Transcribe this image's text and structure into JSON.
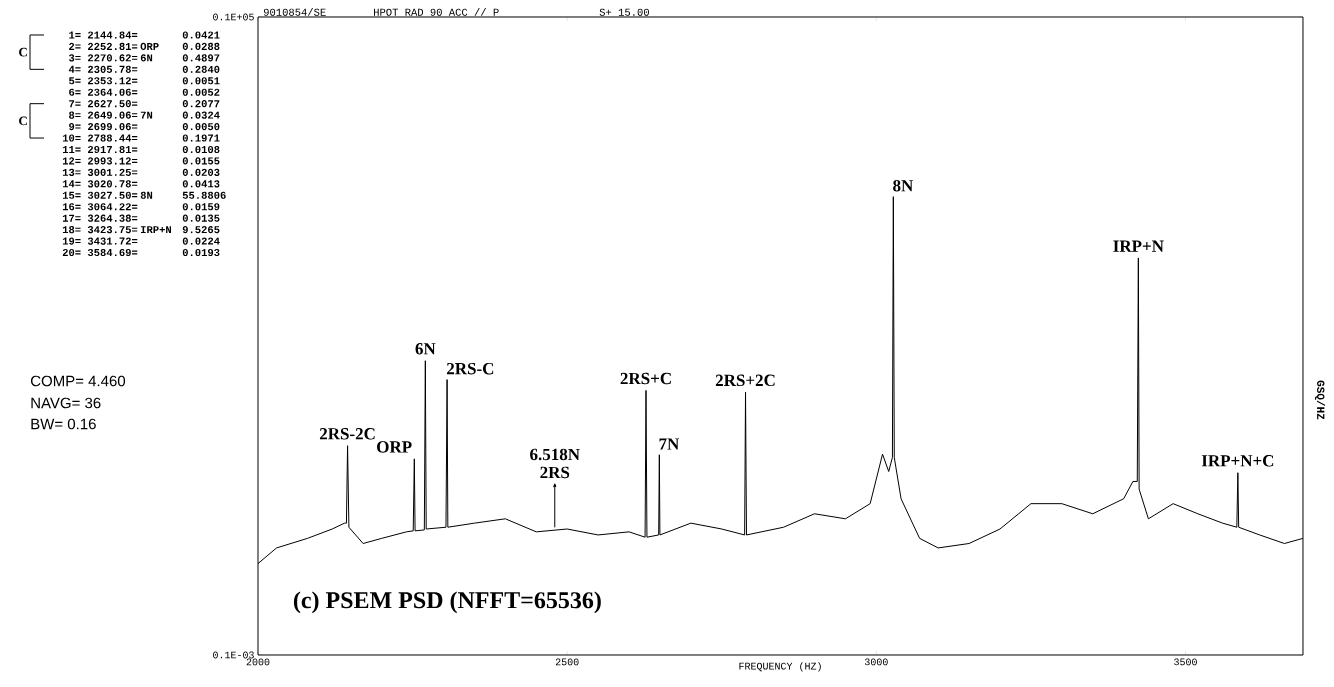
{
  "chart_data": {
    "type": "line",
    "title": "(c) PSEM PSD (NFFT=65536)",
    "xlabel": "FREQUENCY (HZ)",
    "ylabel": "GSQ/HZ",
    "log": "y",
    "color": "#000000",
    "xlim": [
      2000,
      3690
    ],
    "xticks": [
      2000,
      2500,
      3000,
      3500
    ],
    "ylim": [
      0.0001,
      10000
    ],
    "yticks": [
      {
        "value": 0.0001,
        "label": "0.1E-03"
      },
      {
        "value": 10000,
        "label": "0.1E+05"
      }
    ],
    "x": [
      2000,
      2030,
      2080,
      2120,
      2140,
      2143,
      2144.84,
      2147,
      2170,
      2200,
      2240,
      2251,
      2252.81,
      2254,
      2269,
      2270.62,
      2272,
      2304,
      2305.78,
      2307,
      2350,
      2400,
      2450,
      2500,
      2550,
      2600,
      2626,
      2627.5,
      2629,
      2648,
      2649.06,
      2650,
      2700,
      2750,
      2787,
      2788.44,
      2790,
      2850,
      2900,
      2950,
      2990,
      3010,
      3020,
      3026,
      3027.5,
      3029,
      3040,
      3070,
      3100,
      3150,
      3200,
      3250,
      3300,
      3350,
      3400,
      3415,
      3422,
      3423.75,
      3425,
      3440,
      3480,
      3520,
      3560,
      3583,
      3584.69,
      3586,
      3620,
      3660,
      3690
    ],
    "values": [
      0.0014,
      0.0022,
      0.0029,
      0.0038,
      0.0045,
      0.0045,
      0.0421,
      0.004,
      0.0025,
      0.0029,
      0.0035,
      0.0036,
      0.0288,
      0.0036,
      0.0037,
      0.4897,
      0.0038,
      0.004,
      0.284,
      0.004,
      0.0045,
      0.0051,
      0.0035,
      0.0038,
      0.0032,
      0.0035,
      0.003,
      0.2077,
      0.003,
      0.0032,
      0.0324,
      0.0032,
      0.0045,
      0.0038,
      0.0032,
      0.1971,
      0.0032,
      0.004,
      0.0059,
      0.0051,
      0.0079,
      0.033,
      0.02,
      0.03,
      55.8806,
      0.03,
      0.0091,
      0.0029,
      0.0022,
      0.0025,
      0.0038,
      0.0079,
      0.0079,
      0.0059,
      0.0091,
      0.015,
      0.015,
      9.5265,
      0.012,
      0.0051,
      0.0079,
      0.0059,
      0.0045,
      0.004,
      0.0193,
      0.004,
      0.0032,
      0.0025,
      0.0029
    ],
    "annotations": [
      "1= 2144.84=",
      "2= 2252.81=",
      "3= 2270.62=",
      "4= 2305.78=",
      "5= 2353.12=",
      "6= 2364.06=",
      "7= 2627.50=",
      "8= 2649.06=",
      "9= 2699.06=",
      "10= 2788.44=",
      "11= 2917.81=",
      "12= 2993.12=",
      "13= 3001.25=",
      "14= 3020.78=",
      "15= 3027.50=",
      "16= 3064.22=",
      "17= 3264.38=",
      "18= 3423.75=",
      "19= 3431.72=",
      "20= 3584.69=",
      "0.0421",
      "0.0288",
      "0.4897",
      "0.2840",
      "0.0051",
      "0.0052",
      "0.2077",
      "0.0324",
      "0.0050",
      "0.1971",
      "0.0108",
      "0.0155",
      "0.0203",
      "0.0413",
      "55.8806",
      "0.0159",
      "0.0135",
      "9.5265",
      "0.0224",
      "0.0193",
      "ORP",
      "6N",
      "7N",
      "8N",
      "IRP+N",
      "C",
      "C",
      "9010854/SE",
      "HPOT RAD 90 ACC // P",
      "S+ 15.00",
      "COMP= 4.460",
      "NAVG= 36",
      "BW= 0.16",
      {
        "text": "2RS-2C",
        "x": 2144.84,
        "y": 0.0421
      },
      {
        "text": "ORP",
        "x": 2252.81,
        "y": 0.0288
      },
      {
        "text": "6N",
        "x": 2270.62,
        "y": 0.4897
      },
      {
        "text": "2RS-C",
        "x": 2305.78,
        "y": 0.284
      },
      {
        "text": "2RS+C",
        "x": 2627.5,
        "y": 0.2077
      },
      {
        "text": "7N",
        "x": 2649.06,
        "y": 0.0324
      },
      {
        "text": "2RS+2C",
        "x": 2788.44,
        "y": 0.1971
      },
      {
        "text": "8N",
        "x": 3027.5,
        "y": 55.8806
      },
      {
        "text": "IRP+N",
        "x": 3423.75,
        "y": 9.5265
      },
      {
        "text": "IRP+N+C",
        "x": 3584.69,
        "y": 0.0193
      },
      "6.518N 2RS"
    ]
  }
}
